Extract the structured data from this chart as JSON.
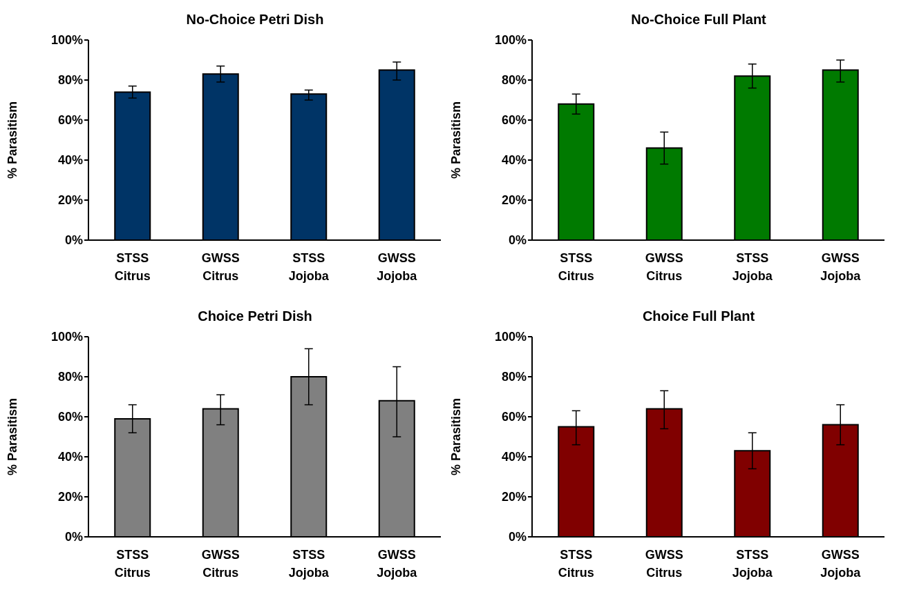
{
  "chart_data": [
    {
      "type": "bar",
      "title": "No-Choice Petri Dish",
      "ylabel": "% Parasitism",
      "categories": [
        "STSS Citrus",
        "GWSS Citrus",
        "STSS Jojoba",
        "GWSS Jojoba"
      ],
      "values": [
        74,
        83,
        73,
        85
      ],
      "errors": [
        [
          71,
          77
        ],
        [
          79,
          87
        ],
        [
          70,
          75
        ],
        [
          80,
          89
        ]
      ],
      "color": "#003466",
      "ylim": [
        0,
        100
      ],
      "yticks": [
        {
          "value": 0,
          "label": "0%"
        },
        {
          "value": 20,
          "label": "20%"
        },
        {
          "value": 40,
          "label": "40%"
        },
        {
          "value": 60,
          "label": "60%"
        },
        {
          "value": 80,
          "label": "80%"
        },
        {
          "value": 100,
          "label": "100%"
        }
      ],
      "grid": false,
      "legend": false
    },
    {
      "type": "bar",
      "title": "No-Choice Full Plant",
      "ylabel": "% Parasitism",
      "categories": [
        "STSS Citrus",
        "GWSS Citrus",
        "STSS Jojoba",
        "GWSS Jojoba"
      ],
      "values": [
        68,
        46,
        82,
        85
      ],
      "errors": [
        [
          63,
          73
        ],
        [
          38,
          54
        ],
        [
          76,
          88
        ],
        [
          79,
          90
        ]
      ],
      "color": "#007a00",
      "ylim": [
        0,
        100
      ],
      "yticks": [
        {
          "value": 0,
          "label": "0%"
        },
        {
          "value": 20,
          "label": "20%"
        },
        {
          "value": 40,
          "label": "40%"
        },
        {
          "value": 60,
          "label": "60%"
        },
        {
          "value": 80,
          "label": "80%"
        },
        {
          "value": 100,
          "label": "100%"
        }
      ],
      "grid": false,
      "legend": false
    },
    {
      "type": "bar",
      "title": "Choice Petri Dish",
      "ylabel": "% Parasitism",
      "categories": [
        "STSS Citrus",
        "GWSS Citrus",
        "STSS Jojoba",
        "GWSS Jojoba"
      ],
      "values": [
        59,
        64,
        80,
        68
      ],
      "errors": [
        [
          52,
          66
        ],
        [
          56,
          71
        ],
        [
          66,
          94
        ],
        [
          50,
          85
        ]
      ],
      "color": "#808080",
      "ylim": [
        0,
        100
      ],
      "yticks": [
        {
          "value": 0,
          "label": "0%"
        },
        {
          "value": 20,
          "label": "20%"
        },
        {
          "value": 40,
          "label": "40%"
        },
        {
          "value": 60,
          "label": "60%"
        },
        {
          "value": 80,
          "label": "80%"
        },
        {
          "value": 100,
          "label": "100%"
        }
      ],
      "grid": false,
      "legend": false
    },
    {
      "type": "bar",
      "title": "Choice Full Plant",
      "ylabel": "% Parasitism",
      "categories": [
        "STSS Citrus",
        "GWSS Citrus",
        "STSS Jojoba",
        "GWSS Jojoba"
      ],
      "values": [
        55,
        64,
        43,
        56
      ],
      "errors": [
        [
          46,
          63
        ],
        [
          54,
          73
        ],
        [
          34,
          52
        ],
        [
          46,
          66
        ]
      ],
      "color": "#800000",
      "ylim": [
        0,
        100
      ],
      "yticks": [
        {
          "value": 0,
          "label": "0%"
        },
        {
          "value": 20,
          "label": "20%"
        },
        {
          "value": 40,
          "label": "40%"
        },
        {
          "value": 60,
          "label": "60%"
        },
        {
          "value": 80,
          "label": "80%"
        },
        {
          "value": 100,
          "label": "100%"
        }
      ],
      "grid": false,
      "legend": false
    }
  ]
}
